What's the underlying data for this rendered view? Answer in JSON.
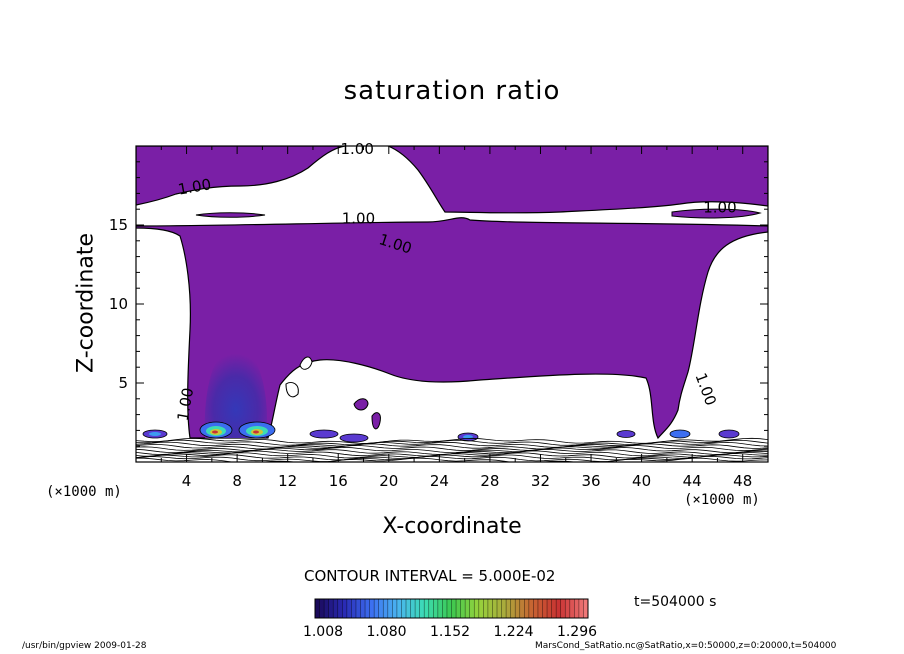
{
  "chart_data": {
    "type": "heatmap",
    "title": "saturation ratio",
    "xlabel": "X-coordinate",
    "ylabel": "Z-coordinate",
    "x_unit_label": "(×1000 m)",
    "xlim": [
      0,
      50
    ],
    "ylim": [
      0,
      20
    ],
    "x_ticks": [
      "4",
      "8",
      "12",
      "16",
      "20",
      "24",
      "28",
      "32",
      "36",
      "40",
      "44",
      "48"
    ],
    "y_ticks": [
      "5",
      "10",
      "15"
    ],
    "contour_interval_label": "CONTOUR INTERVAL = 5.000E-02",
    "contour_labels": [
      {
        "text": "1.00",
        "x": 17.5,
        "z": 19.5
      },
      {
        "text": "1.00",
        "x": 4.7,
        "z": 17.1
      },
      {
        "text": "1.00",
        "x": 17.6,
        "z": 15.1
      },
      {
        "text": "1.00",
        "x": 20.4,
        "z": 13.5
      },
      {
        "text": "1.00",
        "x": 46.2,
        "z": 15.8
      },
      {
        "text": "1.00",
        "x": 44.7,
        "z": 4.5
      },
      {
        "text": "1.00",
        "x": 4.3,
        "z": 3.6
      }
    ],
    "colorbar": {
      "labels": [
        "1.008",
        "1.080",
        "1.152",
        "1.224",
        "1.296"
      ],
      "colors": [
        "#1a0a5a",
        "#2a2ab4",
        "#3c6ef0",
        "#4ab4f0",
        "#3cdcb4",
        "#3cc850",
        "#96d23c",
        "#aaaa3c",
        "#c86432",
        "#c83232",
        "#f07878"
      ]
    },
    "time_label": "t=504000 s",
    "footer_left": "/usr/bin/gpview   2009-01-28",
    "footer_right": "MarsCond_SatRatio.nc@SatRatio,x=0:50000,z=0:20000,t=504000"
  }
}
